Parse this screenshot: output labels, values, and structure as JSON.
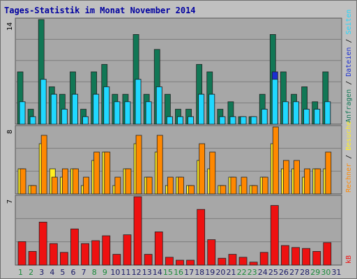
{
  "title": "Tages-Statistik im Monat November 2014",
  "colors": {
    "background": "#c0c0c0",
    "panel": "#a7a7a7",
    "grid": "#7d7d7d",
    "title": "#0000a0",
    "anfragen": "#117755",
    "dateien": "#1b2fd1",
    "seiten": "#20d8ff",
    "besuche": "#ffee22",
    "rechner": "#ff8800",
    "kb": "#ee1111",
    "weekend_day": "#1a8a3a",
    "weekday": "#1a1a66"
  },
  "chart_data": [
    {
      "type": "bar",
      "ylabel_parts": [
        "Anfragen",
        "/",
        "Dateien",
        "/",
        "Seiten"
      ],
      "y_max_label": "14",
      "ylim": [
        0,
        14
      ],
      "categories": [
        "1",
        "2",
        "3",
        "4",
        "5",
        "6",
        "7",
        "8",
        "9",
        "10",
        "11",
        "12",
        "13",
        "14",
        "15",
        "16",
        "17",
        "18",
        "19",
        "20",
        "21",
        "22",
        "23",
        "24",
        "25",
        "26",
        "27",
        "28",
        "29",
        "30",
        "31"
      ],
      "series": [
        {
          "name": "Anfragen",
          "values": [
            7,
            2,
            14,
            5,
            4,
            7,
            2,
            7,
            8,
            4,
            4,
            12,
            4,
            10,
            4,
            2,
            2,
            8,
            7,
            2,
            3,
            1,
            1,
            4,
            12,
            7,
            4,
            5,
            3,
            7,
            0
          ]
        },
        {
          "name": "Dateien",
          "values": [
            3,
            1,
            6,
            4,
            2,
            4,
            1,
            4,
            5,
            3,
            3,
            6,
            3,
            5,
            1,
            1,
            1,
            4,
            4,
            1,
            1,
            1,
            1,
            2,
            7,
            3,
            3,
            2,
            2,
            3,
            0
          ]
        },
        {
          "name": "Seiten",
          "values": [
            3,
            1,
            6,
            4,
            2,
            4,
            1,
            4,
            5,
            3,
            3,
            6,
            3,
            5,
            1,
            1,
            1,
            4,
            4,
            1,
            1,
            1,
            1,
            2,
            6,
            3,
            3,
            2,
            2,
            3,
            0
          ]
        }
      ]
    },
    {
      "type": "bar",
      "ylabel_parts": [
        "Rechner",
        "/",
        "Besuche"
      ],
      "y_max_label": "8",
      "ylim": [
        0,
        8
      ],
      "categories": [
        "1",
        "2",
        "3",
        "4",
        "5",
        "6",
        "7",
        "8",
        "9",
        "10",
        "11",
        "12",
        "13",
        "14",
        "15",
        "16",
        "17",
        "18",
        "19",
        "20",
        "21",
        "22",
        "23",
        "24",
        "25",
        "26",
        "27",
        "28",
        "29",
        "30",
        "31"
      ],
      "series": [
        {
          "name": "Besuche",
          "values": [
            3,
            1,
            6,
            3,
            2,
            3,
            1,
            4,
            5,
            1,
            3,
            6,
            2,
            5,
            1,
            2,
            1,
            4,
            3,
            1,
            2,
            1,
            1,
            2,
            6,
            3,
            3,
            2,
            3,
            3,
            0
          ]
        },
        {
          "name": "Rechner",
          "values": [
            3,
            1,
            7,
            2,
            3,
            3,
            2,
            5,
            5,
            2,
            3,
            7,
            2,
            7,
            2,
            2,
            1,
            6,
            5,
            1,
            2,
            2,
            1,
            2,
            8,
            4,
            4,
            3,
            3,
            5,
            0
          ]
        }
      ]
    },
    {
      "type": "bar",
      "ylabel_parts": [
        "kB"
      ],
      "y_max_label": "7",
      "ylim": [
        0,
        7
      ],
      "categories": [
        "1",
        "2",
        "3",
        "4",
        "5",
        "6",
        "7",
        "8",
        "9",
        "10",
        "11",
        "12",
        "13",
        "14",
        "15",
        "16",
        "17",
        "18",
        "19",
        "20",
        "21",
        "22",
        "23",
        "24",
        "25",
        "26",
        "27",
        "28",
        "29",
        "30",
        "31"
      ],
      "series": [
        {
          "name": "kB",
          "values": [
            2.4,
            1.4,
            4.4,
            2.2,
            1.3,
            3.7,
            2.2,
            2.5,
            3.0,
            1.1,
            3.1,
            7.0,
            1.1,
            3.4,
            0.8,
            0.5,
            0.5,
            5.7,
            2.6,
            0.7,
            1.1,
            0.8,
            0.3,
            1.3,
            6.1,
            2.0,
            1.8,
            1.7,
            1.4,
            2.3,
            0.0
          ]
        }
      ]
    }
  ],
  "x_axis": {
    "labels": [
      "1",
      "2",
      "3",
      "4",
      "5",
      "6",
      "7",
      "8",
      "9",
      "10",
      "11",
      "12",
      "13",
      "14",
      "15",
      "16",
      "17",
      "18",
      "19",
      "20",
      "21",
      "22",
      "23",
      "24",
      "25",
      "26",
      "27",
      "28",
      "29",
      "30",
      "31"
    ],
    "weekend_days": [
      "1",
      "2",
      "8",
      "9",
      "15",
      "16",
      "22",
      "23",
      "29",
      "30"
    ]
  }
}
